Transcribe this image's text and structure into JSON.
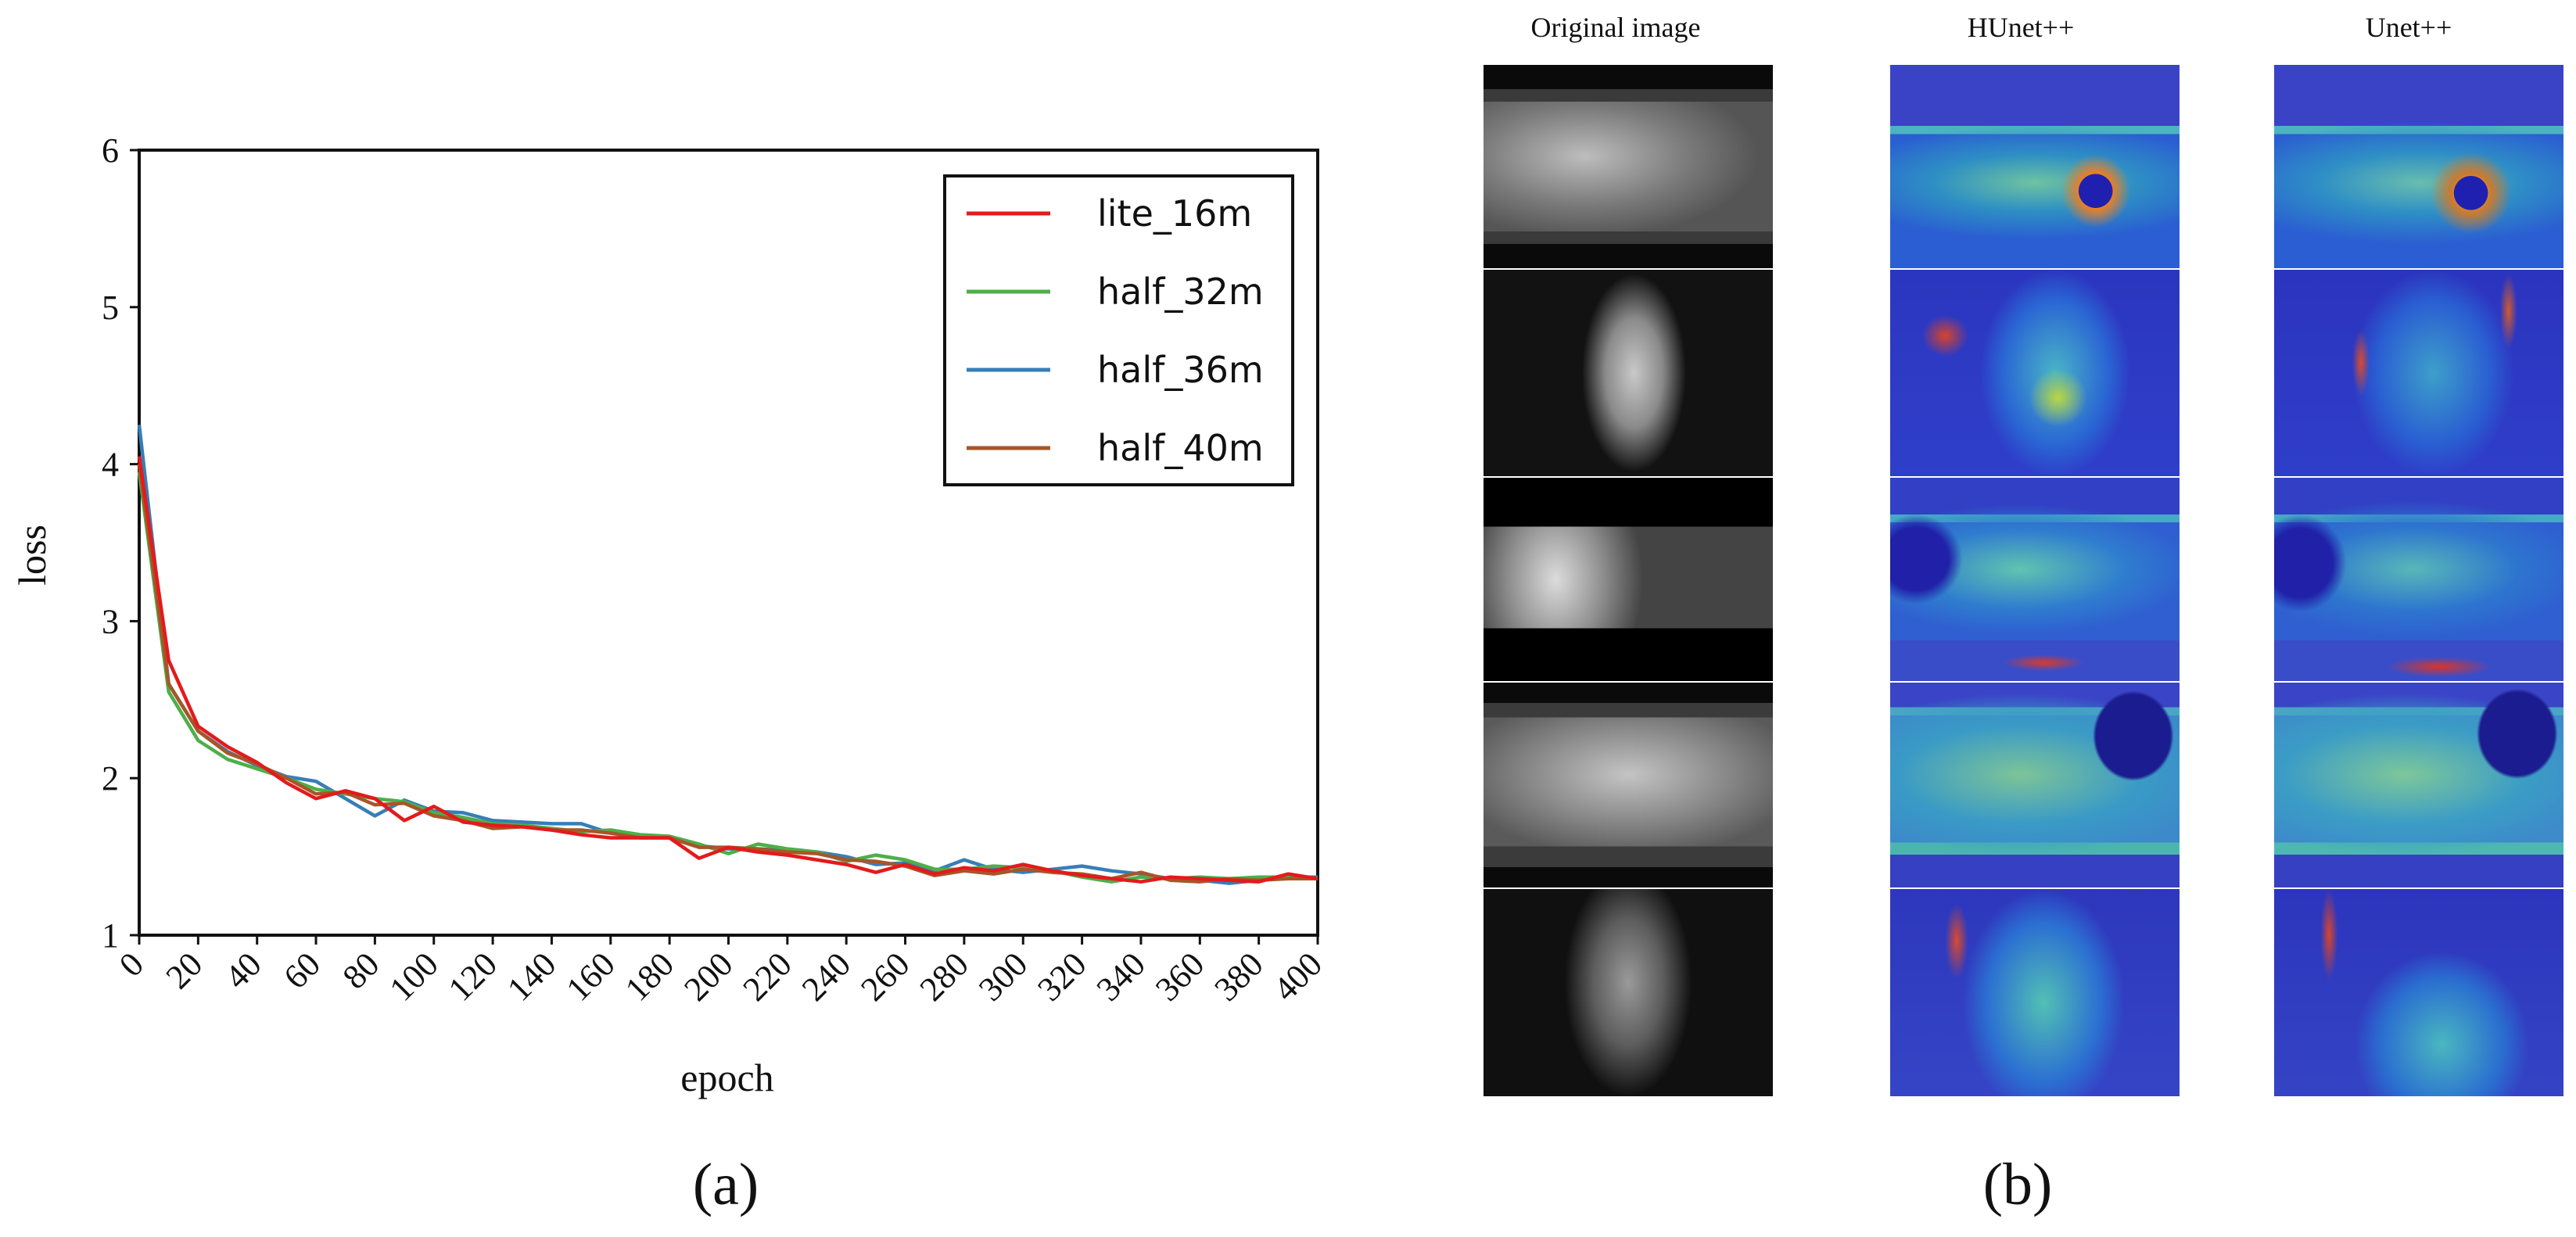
{
  "chart_data": {
    "type": "line",
    "title": "",
    "xlabel": "epoch",
    "ylabel": "loss",
    "xlim": [
      0,
      400
    ],
    "ylim": [
      1,
      6
    ],
    "xticks": [
      0,
      20,
      40,
      60,
      80,
      100,
      120,
      140,
      160,
      180,
      200,
      220,
      240,
      260,
      280,
      300,
      320,
      340,
      360,
      380,
      400
    ],
    "yticks": [
      1,
      2,
      3,
      4,
      5,
      6
    ],
    "legend_position": "top-right",
    "x": [
      0,
      10,
      20,
      30,
      40,
      50,
      60,
      70,
      80,
      90,
      100,
      110,
      120,
      130,
      140,
      150,
      160,
      170,
      180,
      190,
      200,
      210,
      220,
      230,
      240,
      250,
      260,
      270,
      280,
      290,
      300,
      310,
      320,
      330,
      340,
      350,
      360,
      370,
      380,
      390,
      400
    ],
    "series": [
      {
        "name": "lite_16m",
        "color": "#e41a1c",
        "values": [
          4.05,
          2.75,
          2.33,
          2.2,
          2.1,
          1.97,
          1.87,
          1.92,
          1.87,
          1.73,
          1.82,
          1.72,
          1.7,
          1.69,
          1.67,
          1.64,
          1.62,
          1.62,
          1.62,
          1.49,
          1.56,
          1.53,
          1.51,
          1.48,
          1.45,
          1.4,
          1.45,
          1.39,
          1.43,
          1.41,
          1.45,
          1.41,
          1.38,
          1.36,
          1.34,
          1.37,
          1.36,
          1.35,
          1.34,
          1.39,
          1.36
        ]
      },
      {
        "name": "half_32m",
        "color": "#4daf4a",
        "values": [
          3.95,
          2.55,
          2.24,
          2.12,
          2.06,
          2.0,
          1.93,
          1.9,
          1.87,
          1.85,
          1.78,
          1.75,
          1.71,
          1.7,
          1.68,
          1.66,
          1.67,
          1.64,
          1.63,
          1.58,
          1.52,
          1.58,
          1.55,
          1.53,
          1.47,
          1.51,
          1.48,
          1.42,
          1.42,
          1.44,
          1.43,
          1.41,
          1.37,
          1.34,
          1.37,
          1.36,
          1.37,
          1.36,
          1.37,
          1.37,
          1.36
        ]
      },
      {
        "name": "half_36m",
        "color": "#377eb8",
        "values": [
          4.25,
          2.6,
          2.3,
          2.17,
          2.08,
          2.01,
          1.98,
          1.87,
          1.76,
          1.86,
          1.79,
          1.78,
          1.73,
          1.72,
          1.71,
          1.71,
          1.65,
          1.63,
          1.62,
          1.57,
          1.55,
          1.55,
          1.54,
          1.53,
          1.5,
          1.45,
          1.46,
          1.41,
          1.48,
          1.42,
          1.4,
          1.42,
          1.44,
          1.41,
          1.39,
          1.36,
          1.35,
          1.33,
          1.35,
          1.37,
          1.37
        ]
      },
      {
        "name": "half_40m",
        "color": "#a65628",
        "values": [
          4.0,
          2.6,
          2.3,
          2.16,
          2.09,
          2.0,
          1.9,
          1.91,
          1.83,
          1.84,
          1.76,
          1.73,
          1.68,
          1.69,
          1.67,
          1.67,
          1.65,
          1.62,
          1.62,
          1.56,
          1.56,
          1.55,
          1.53,
          1.52,
          1.48,
          1.47,
          1.44,
          1.38,
          1.41,
          1.39,
          1.42,
          1.4,
          1.39,
          1.36,
          1.4,
          1.35,
          1.34,
          1.36,
          1.35,
          1.36,
          1.36
        ]
      }
    ]
  },
  "panels": {
    "a_label": "(a)",
    "b_label": "(b)"
  },
  "figure_b": {
    "col_titles": [
      "Original image",
      "HUnet++",
      "Unet++"
    ],
    "rows": 5
  }
}
